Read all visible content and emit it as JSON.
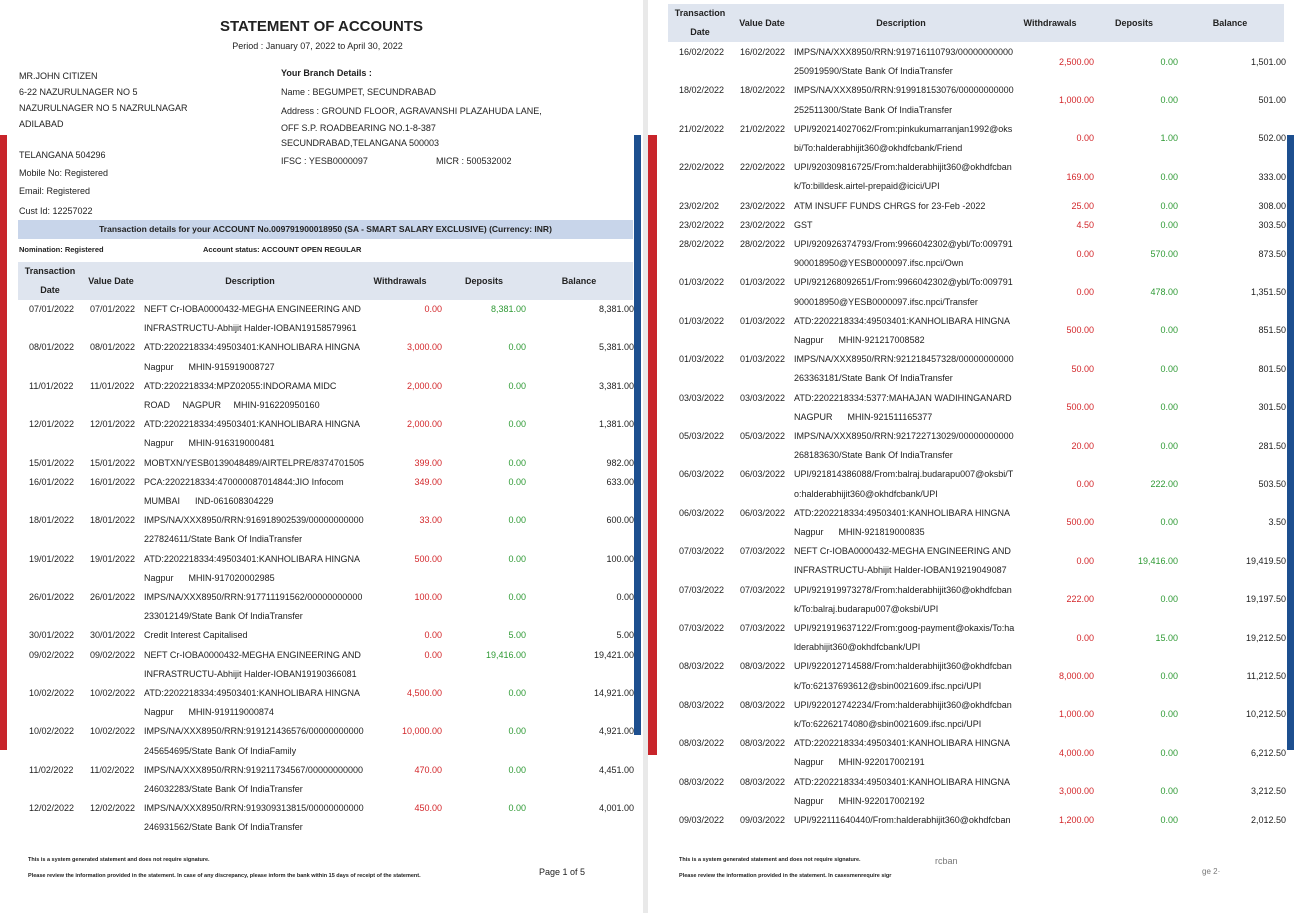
{
  "page1": {
    "title": "STATEMENT OF ACCOUNTS",
    "period": "Period : January 07, 2022 to April 30, 2022",
    "customer": [
      "MR.JOHN CITIZEN",
      "6-22 NAZURULNAGER NO 5",
      "NAZURULNAGER NO 5 NAZRULNAGAR",
      "ADILABAD",
      "TELANGANA 504296",
      "Mobile No: Registered",
      "Email: Registered",
      "Cust Id: 12257022"
    ],
    "branch": {
      "heading": "Your Branch Details :",
      "name": "Name : BEGUMPET, SECUNDRABAD",
      "address": [
        "Address : GROUND FLOOR, AGRAVANSHI PLAZAHUDA LANE,",
        "OFF S.P. ROADBEARING NO.1-8-387",
        "SECUNDRABAD,TELANGANA 500003"
      ],
      "ifsc": "IFSC : YESB0000097",
      "micr": "MICR : 500532002"
    },
    "account_banner": "Transaction details for your ACCOUNT No.009791900018950 (SA - SMART SALARY EXCLUSIVE) (Currency: INR)",
    "nomination": "Nomination: Registered",
    "account_status": "Account status: ACCOUNT OPEN REGULAR",
    "table": {
      "columns": [
        "Transaction Date",
        "Value Date",
        "Description",
        "Withdrawals",
        "Deposits",
        "Balance"
      ],
      "rows": [
        {
          "date": "07/01/2022",
          "value_date": "07/01/2022",
          "description": [
            "NEFT Cr-IOBA0000432-MEGHA ENGINEERING AND",
            "INFRASTRUCTU-Abhijit Halder-IOBAN19158579961"
          ],
          "withdrawal": "0.00",
          "deposit": "8,381.00",
          "balance": "8,381.00"
        },
        {
          "date": "08/01/2022",
          "value_date": "08/01/2022",
          "description": [
            "ATD:2202218334:49503401:KANHOLIBARA HINGNA",
            "Nagpur      MHIN-915919008727"
          ],
          "withdrawal": "3,000.00",
          "deposit": "0.00",
          "balance": "5,381.00"
        },
        {
          "date": "11/01/2022",
          "value_date": "11/01/2022",
          "description": [
            "ATD:2202218334:MPZ02055:INDORAMA MIDC",
            "ROAD     NAGPUR     MHIN-916220950160"
          ],
          "withdrawal": "2,000.00",
          "deposit": "0.00",
          "balance": "3,381.00"
        },
        {
          "date": "12/01/2022",
          "value_date": "12/01/2022",
          "description": [
            "ATD:2202218334:49503401:KANHOLIBARA HINGNA",
            "Nagpur      MHIN-916319000481"
          ],
          "withdrawal": "2,000.00",
          "deposit": "0.00",
          "balance": "1,381.00"
        },
        {
          "date": "15/01/2022",
          "value_date": "15/01/2022",
          "description": [
            "MOBTXN/YESB0139048489/AIRTELPRE/8374701505"
          ],
          "withdrawal": "399.00",
          "deposit": "0.00",
          "balance": "982.00"
        },
        {
          "date": "16/01/2022",
          "value_date": "16/01/2022",
          "description": [
            "PCA:2202218334:470000087014844:JIO Infocom",
            "MUMBAI      IND-061608304229"
          ],
          "withdrawal": "349.00",
          "deposit": "0.00",
          "balance": "633.00"
        },
        {
          "date": "18/01/2022",
          "value_date": "18/01/2022",
          "description": [
            "IMPS/NA/XXX8950/RRN:916918902539/00000000000",
            "227824611/State Bank Of IndiaTransfer"
          ],
          "withdrawal": "33.00",
          "deposit": "0.00",
          "balance": "600.00"
        },
        {
          "date": "19/01/2022",
          "value_date": "19/01/2022",
          "description": [
            "ATD:2202218334:49503401:KANHOLIBARA HINGNA",
            "Nagpur      MHIN-917020002985"
          ],
          "withdrawal": "500.00",
          "deposit": "0.00",
          "balance": "100.00"
        },
        {
          "date": "26/01/2022",
          "value_date": "26/01/2022",
          "description": [
            "IMPS/NA/XXX8950/RRN:917711191562/00000000000",
            "233012149/State Bank Of IndiaTransfer"
          ],
          "withdrawal": "100.00",
          "deposit": "0.00",
          "balance": "0.00"
        },
        {
          "date": "30/01/2022",
          "value_date": "30/01/2022",
          "description": [
            "Credit Interest Capitalised"
          ],
          "withdrawal": "0.00",
          "deposit": "5.00",
          "balance": "5.00"
        },
        {
          "date": "09/02/2022",
          "value_date": "09/02/2022",
          "description": [
            "NEFT Cr-IOBA0000432-MEGHA ENGINEERING AND",
            "INFRASTRUCTU-Abhijit Halder-IOBAN19190366081"
          ],
          "withdrawal": "0.00",
          "deposit": "19,416.00",
          "balance": "19,421.00"
        },
        {
          "date": "10/02/2022",
          "value_date": "10/02/2022",
          "description": [
            "ATD:2202218334:49503401:KANHOLIBARA HINGNA",
            "Nagpur      MHIN-919119000874"
          ],
          "withdrawal": "4,500.00",
          "deposit": "0.00",
          "balance": "14,921.00"
        },
        {
          "date": "10/02/2022",
          "value_date": "10/02/2022",
          "description": [
            "IMPS/NA/XXX8950/RRN:919121436576/00000000000",
            "245654695/State Bank Of IndiaFamily"
          ],
          "withdrawal": "10,000.00",
          "deposit": "0.00",
          "balance": "4,921.00"
        },
        {
          "date": "11/02/2022",
          "value_date": "11/02/2022",
          "description": [
            "IMPS/NA/XXX8950/RRN:919211734567/00000000000",
            "246032283/State Bank Of IndiaTransfer"
          ],
          "withdrawal": "470.00",
          "deposit": "0.00",
          "balance": "4,451.00"
        },
        {
          "date": "12/02/2022",
          "value_date": "12/02/2022",
          "description": [
            "IMPS/NA/XXX8950/RRN:919309313815/00000000000",
            "246931562/State Bank Of IndiaTransfer"
          ],
          "withdrawal": "450.00",
          "deposit": "0.00",
          "balance": "4,001.00"
        }
      ]
    },
    "footer": {
      "note": "This is a system generated statement and does not require signature.",
      "review": "Please review the information provided in the statement. In case of any discrepancy, please inform the bank within 15 days of receipt of the statement.",
      "page": "Page 1 of 5"
    }
  },
  "page2": {
    "table": {
      "columns": [
        "Transaction Date",
        "Value Date",
        "Description",
        "Withdrawals",
        "Deposits",
        "Balance"
      ],
      "rows": [
        {
          "date": "16/02/2022",
          "value_date": "16/02/2022",
          "description": [
            "IMPS/NA/XXX8950/RRN:919716110793/00000000000",
            "250919590/State Bank Of IndiaTransfer"
          ],
          "withdrawal": "2,500.00",
          "deposit": "0.00",
          "balance": "1,501.00"
        },
        {
          "date": "18/02/2022",
          "value_date": "18/02/2022",
          "description": [
            "IMPS/NA/XXX8950/RRN:919918153076/00000000000",
            "252511300/State Bank Of IndiaTransfer"
          ],
          "withdrawal": "1,000.00",
          "deposit": "0.00",
          "balance": "501.00"
        },
        {
          "date": "21/02/2022",
          "value_date": "21/02/2022",
          "description": [
            "UPI/920214027062/From:pinkukumarranjan1992@oks",
            "bi/To:halderabhijit360@okhdfcbank/Friend"
          ],
          "withdrawal": "0.00",
          "deposit": "1.00",
          "balance": "502.00"
        },
        {
          "date": "22/02/2022",
          "value_date": "22/02/2022",
          "description": [
            "UPI/920309816725/From:halderabhijit360@okhdfcban",
            "k/To:billdesk.airtel-prepaid@icici/UPI"
          ],
          "withdrawal": "169.00",
          "deposit": "0.00",
          "balance": "333.00"
        },
        {
          "date": "23/02/202",
          "value_date": "23/02/2022",
          "description": [
            "ATM INSUFF FUNDS CHRGS for 23-Feb -2022"
          ],
          "withdrawal": "25.00",
          "deposit": "0.00",
          "balance": "308.00"
        },
        {
          "date": "23/02/2022",
          "value_date": "23/02/2022",
          "description": [
            "GST"
          ],
          "withdrawal": "4.50",
          "deposit": "0.00",
          "balance": "303.50"
        },
        {
          "date": "28/02/2022",
          "value_date": "28/02/2022",
          "description": [
            "UPI/920926374793/From:9966042302@ybl/To:009791",
            "900018950@YESB0000097.ifsc.npci/Own"
          ],
          "withdrawal": "0.00",
          "deposit": "570.00",
          "balance": "873.50"
        },
        {
          "date": "01/03/2022",
          "value_date": "01/03/2022",
          "description": [
            "UPI/921268092651/From:9966042302@ybl/To:009791",
            "900018950@YESB0000097.ifsc.npci/Transfer"
          ],
          "withdrawal": "0.00",
          "deposit": "478.00",
          "balance": "1,351.50"
        },
        {
          "date": "01/03/2022",
          "value_date": "01/03/2022",
          "description": [
            "ATD:2202218334:49503401:KANHOLIBARA HINGNA",
            "Nagpur      MHIN-921217008582"
          ],
          "withdrawal": "500.00",
          "deposit": "0.00",
          "balance": "851.50"
        },
        {
          "date": "01/03/2022",
          "value_date": "01/03/2022",
          "description": [
            "IMPS/NA/XXX8950/RRN:921218457328/00000000000",
            "263363181/State Bank Of IndiaTransfer"
          ],
          "withdrawal": "50.00",
          "deposit": "0.00",
          "balance": "801.50"
        },
        {
          "date": "03/03/2022",
          "value_date": "03/03/2022",
          "description": [
            "ATD:2202218334:5377:MAHAJAN WADIHINGANARD",
            "NAGPUR      MHIN-921511165377"
          ],
          "withdrawal": "500.00",
          "deposit": "0.00",
          "balance": "301.50"
        },
        {
          "date": "05/03/2022",
          "value_date": "05/03/2022",
          "description": [
            "IMPS/NA/XXX8950/RRN:921722713029/00000000000",
            "268183630/State Bank Of IndiaTransfer"
          ],
          "withdrawal": "20.00",
          "deposit": "0.00",
          "balance": "281.50"
        },
        {
          "date": "06/03/2022",
          "value_date": "06/03/2022",
          "description": [
            "UPI/921814386088/From:balraj.budarapu007@oksbi/T",
            "o:halderabhijit360@okhdfcbank/UPI"
          ],
          "withdrawal": "0.00",
          "deposit": "222.00",
          "balance": "503.50"
        },
        {
          "date": "06/03/2022",
          "value_date": "06/03/2022",
          "description": [
            "ATD:2202218334:49503401:KANHOLIBARA HINGNA",
            "Nagpur      MHIN-921819000835"
          ],
          "withdrawal": "500.00",
          "deposit": "0.00",
          "balance": "3.50"
        },
        {
          "date": "07/03/2022",
          "value_date": "07/03/2022",
          "description": [
            "NEFT Cr-IOBA0000432-MEGHA ENGINEERING AND",
            "INFRASTRUCTU-Abhijit Halder-IOBAN19219049087"
          ],
          "withdrawal": "0.00",
          "deposit": "19,416.00",
          "balance": "19,419.50"
        },
        {
          "date": "07/03/2022",
          "value_date": "07/03/2022",
          "description": [
            "UPI/921919973278/From:halderabhijit360@okhdfcban",
            "k/To:balraj.budarapu007@oksbi/UPI"
          ],
          "withdrawal": "222.00",
          "deposit": "0.00",
          "balance": "19,197.50"
        },
        {
          "date": "07/03/2022",
          "value_date": "07/03/2022",
          "description": [
            "UPI/921919637122/From:goog-payment@okaxis/To:ha",
            "lderabhijit360@okhdfcbank/UPI"
          ],
          "withdrawal": "0.00",
          "deposit": "15.00",
          "balance": "19,212.50"
        },
        {
          "date": "08/03/2022",
          "value_date": "08/03/2022",
          "description": [
            "UPI/922012714588/From:halderabhijit360@okhdfcban",
            "k/To:62137693612@sbin0021609.ifsc.npci/UPI"
          ],
          "withdrawal": "8,000.00",
          "deposit": "0.00",
          "balance": "11,212.50"
        },
        {
          "date": "08/03/2022",
          "value_date": "08/03/2022",
          "description": [
            "UPI/922012742234/From:halderabhijit360@okhdfcban",
            "k/To:62262174080@sbin0021609.ifsc.npci/UPI"
          ],
          "withdrawal": "1,000.00",
          "deposit": "0.00",
          "balance": "10,212.50"
        },
        {
          "date": "08/03/2022",
          "value_date": "08/03/2022",
          "description": [
            "ATD:2202218334:49503401:KANHOLIBARA HINGNA",
            "Nagpur      MHIN-922017002191"
          ],
          "withdrawal": "4,000.00",
          "deposit": "0.00",
          "balance": "6,212.50"
        },
        {
          "date": "08/03/2022",
          "value_date": "08/03/2022",
          "description": [
            "ATD:2202218334:49503401:KANHOLIBARA HINGNA",
            "Nagpur      MHIN-922017002192"
          ],
          "withdrawal": "3,000.00",
          "deposit": "0.00",
          "balance": "3,212.50"
        },
        {
          "date": "09/03/2022",
          "value_date": "09/03/2022",
          "description": [
            "UPI/922111640440/From:halderabhijit360@okhdfcban"
          ],
          "withdrawal": "1,200.00",
          "deposit": "0.00",
          "balance": "2,012.50"
        }
      ]
    },
    "footer": {
      "note": "This is a system generated statement and does not require signature.",
      "review": "Please review the information provided in the statement. In casesmenrequire sigr",
      "fragment": "rcban",
      "page": "ge 2·"
    }
  }
}
